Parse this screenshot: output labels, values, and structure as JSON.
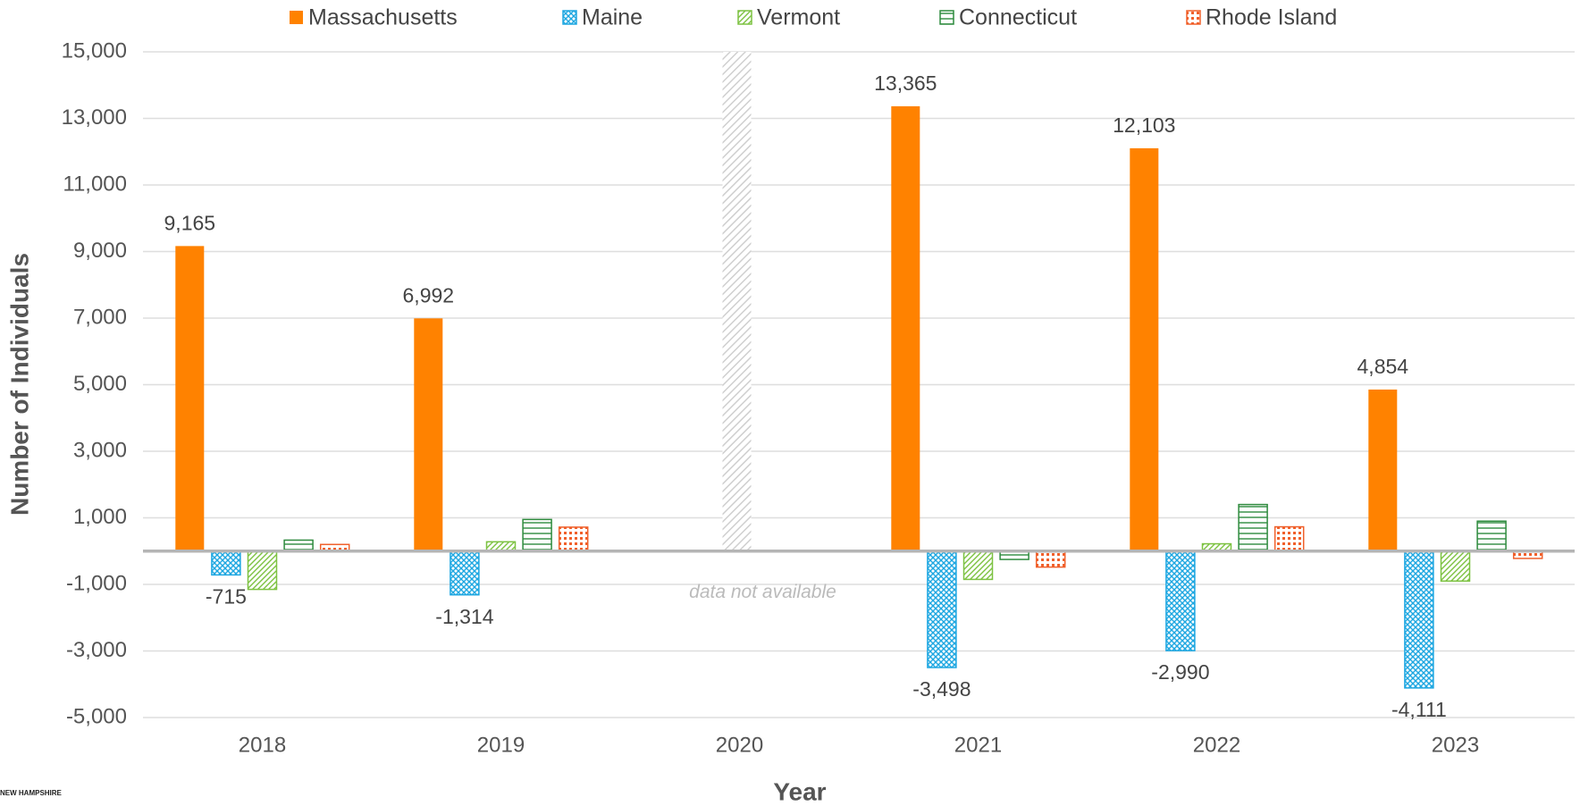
{
  "chart_data": {
    "type": "bar",
    "x_label": "Year",
    "y_label": "Number of Individuals",
    "annotation": "data not available",
    "logo": "NEW HAMPSHIRE",
    "categories": [
      "2018",
      "2019",
      "2020",
      "2021",
      "2022",
      "2023"
    ],
    "series": [
      {
        "name": "Massachusetts",
        "color": "#ff8200",
        "values": [
          9165,
          6992,
          null,
          13365,
          12103,
          4854
        ],
        "value_labels": [
          "9,165",
          "6,992",
          null,
          "13,365",
          "12,103",
          "4,854"
        ]
      },
      {
        "name": "Maine",
        "color": "#1ea7e1",
        "values": [
          -715,
          -1314,
          null,
          -3498,
          -2990,
          -4111
        ],
        "value_labels": [
          "-715",
          "-1,314",
          null,
          "-3,498",
          "-2,990",
          "-4,111"
        ]
      },
      {
        "name": "Vermont",
        "color": "#7dc242",
        "values": [
          -1150,
          280,
          null,
          -850,
          220,
          -900
        ]
      },
      {
        "name": "Connecticut",
        "color": "#2e8b3e",
        "values": [
          330,
          950,
          null,
          -250,
          1400,
          900
        ]
      },
      {
        "name": "Rhode Island",
        "color": "#f0602b",
        "values": [
          200,
          720,
          null,
          -480,
          730,
          -220
        ]
      }
    ],
    "ylim": [
      -5000,
      15000
    ],
    "yticks": [
      {
        "value": -5000,
        "label": "-5,000"
      },
      {
        "value": -3000,
        "label": "-3,000"
      },
      {
        "value": -1000,
        "label": "-1,000"
      },
      {
        "value": 1000,
        "label": "1,000"
      },
      {
        "value": 3000,
        "label": "3,000"
      },
      {
        "value": 5000,
        "label": "5,000"
      },
      {
        "value": 7000,
        "label": "7,000"
      },
      {
        "value": 9000,
        "label": "9,000"
      },
      {
        "value": 11000,
        "label": "11,000"
      },
      {
        "value": 13000,
        "label": "13,000"
      },
      {
        "value": 15000,
        "label": "15,000"
      }
    ],
    "grid": true
  }
}
